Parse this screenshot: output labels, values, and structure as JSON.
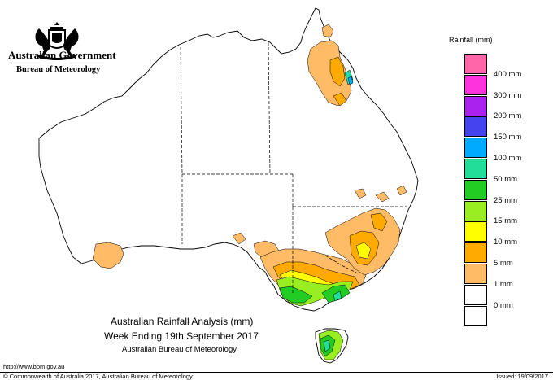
{
  "header": {
    "government": "Australian Government",
    "bureau": "Bureau of Meteorology",
    "crest_icon": "coat-of-arms-icon"
  },
  "legend": {
    "title": "Rainfall (mm)",
    "items": [
      {
        "label": "",
        "color": "#ff66aa"
      },
      {
        "label": "400 mm",
        "color": "#ff33dd"
      },
      {
        "label": "300 mm",
        "color": "#aa22ee"
      },
      {
        "label": "200 mm",
        "color": "#4444ee"
      },
      {
        "label": "150 mm",
        "color": "#00aaff"
      },
      {
        "label": "100 mm",
        "color": "#22dd99"
      },
      {
        "label": "50 mm",
        "color": "#22cc22"
      },
      {
        "label": "25 mm",
        "color": "#99ee22"
      },
      {
        "label": "15 mm",
        "color": "#ffff00"
      },
      {
        "label": "10 mm",
        "color": "#ffaa00"
      },
      {
        "label": "5 mm",
        "color": "#ffbb66"
      },
      {
        "label": "1 mm",
        "color": "#ffffff"
      },
      {
        "label": "0 mm",
        "color": "#ffffff"
      }
    ]
  },
  "map": {
    "title": "Australian Rainfall Analysis (mm)",
    "subtitle": "Week Ending 19th September 2017",
    "source": "Australian Bureau of Meteorology",
    "region": "Australia"
  },
  "footer": {
    "url": "http://www.bom.gov.au",
    "copyright": "© Commonwealth of Australia 2017, Australian Bureau of Meteorology",
    "issued": "Issued: 19/09/2017"
  }
}
